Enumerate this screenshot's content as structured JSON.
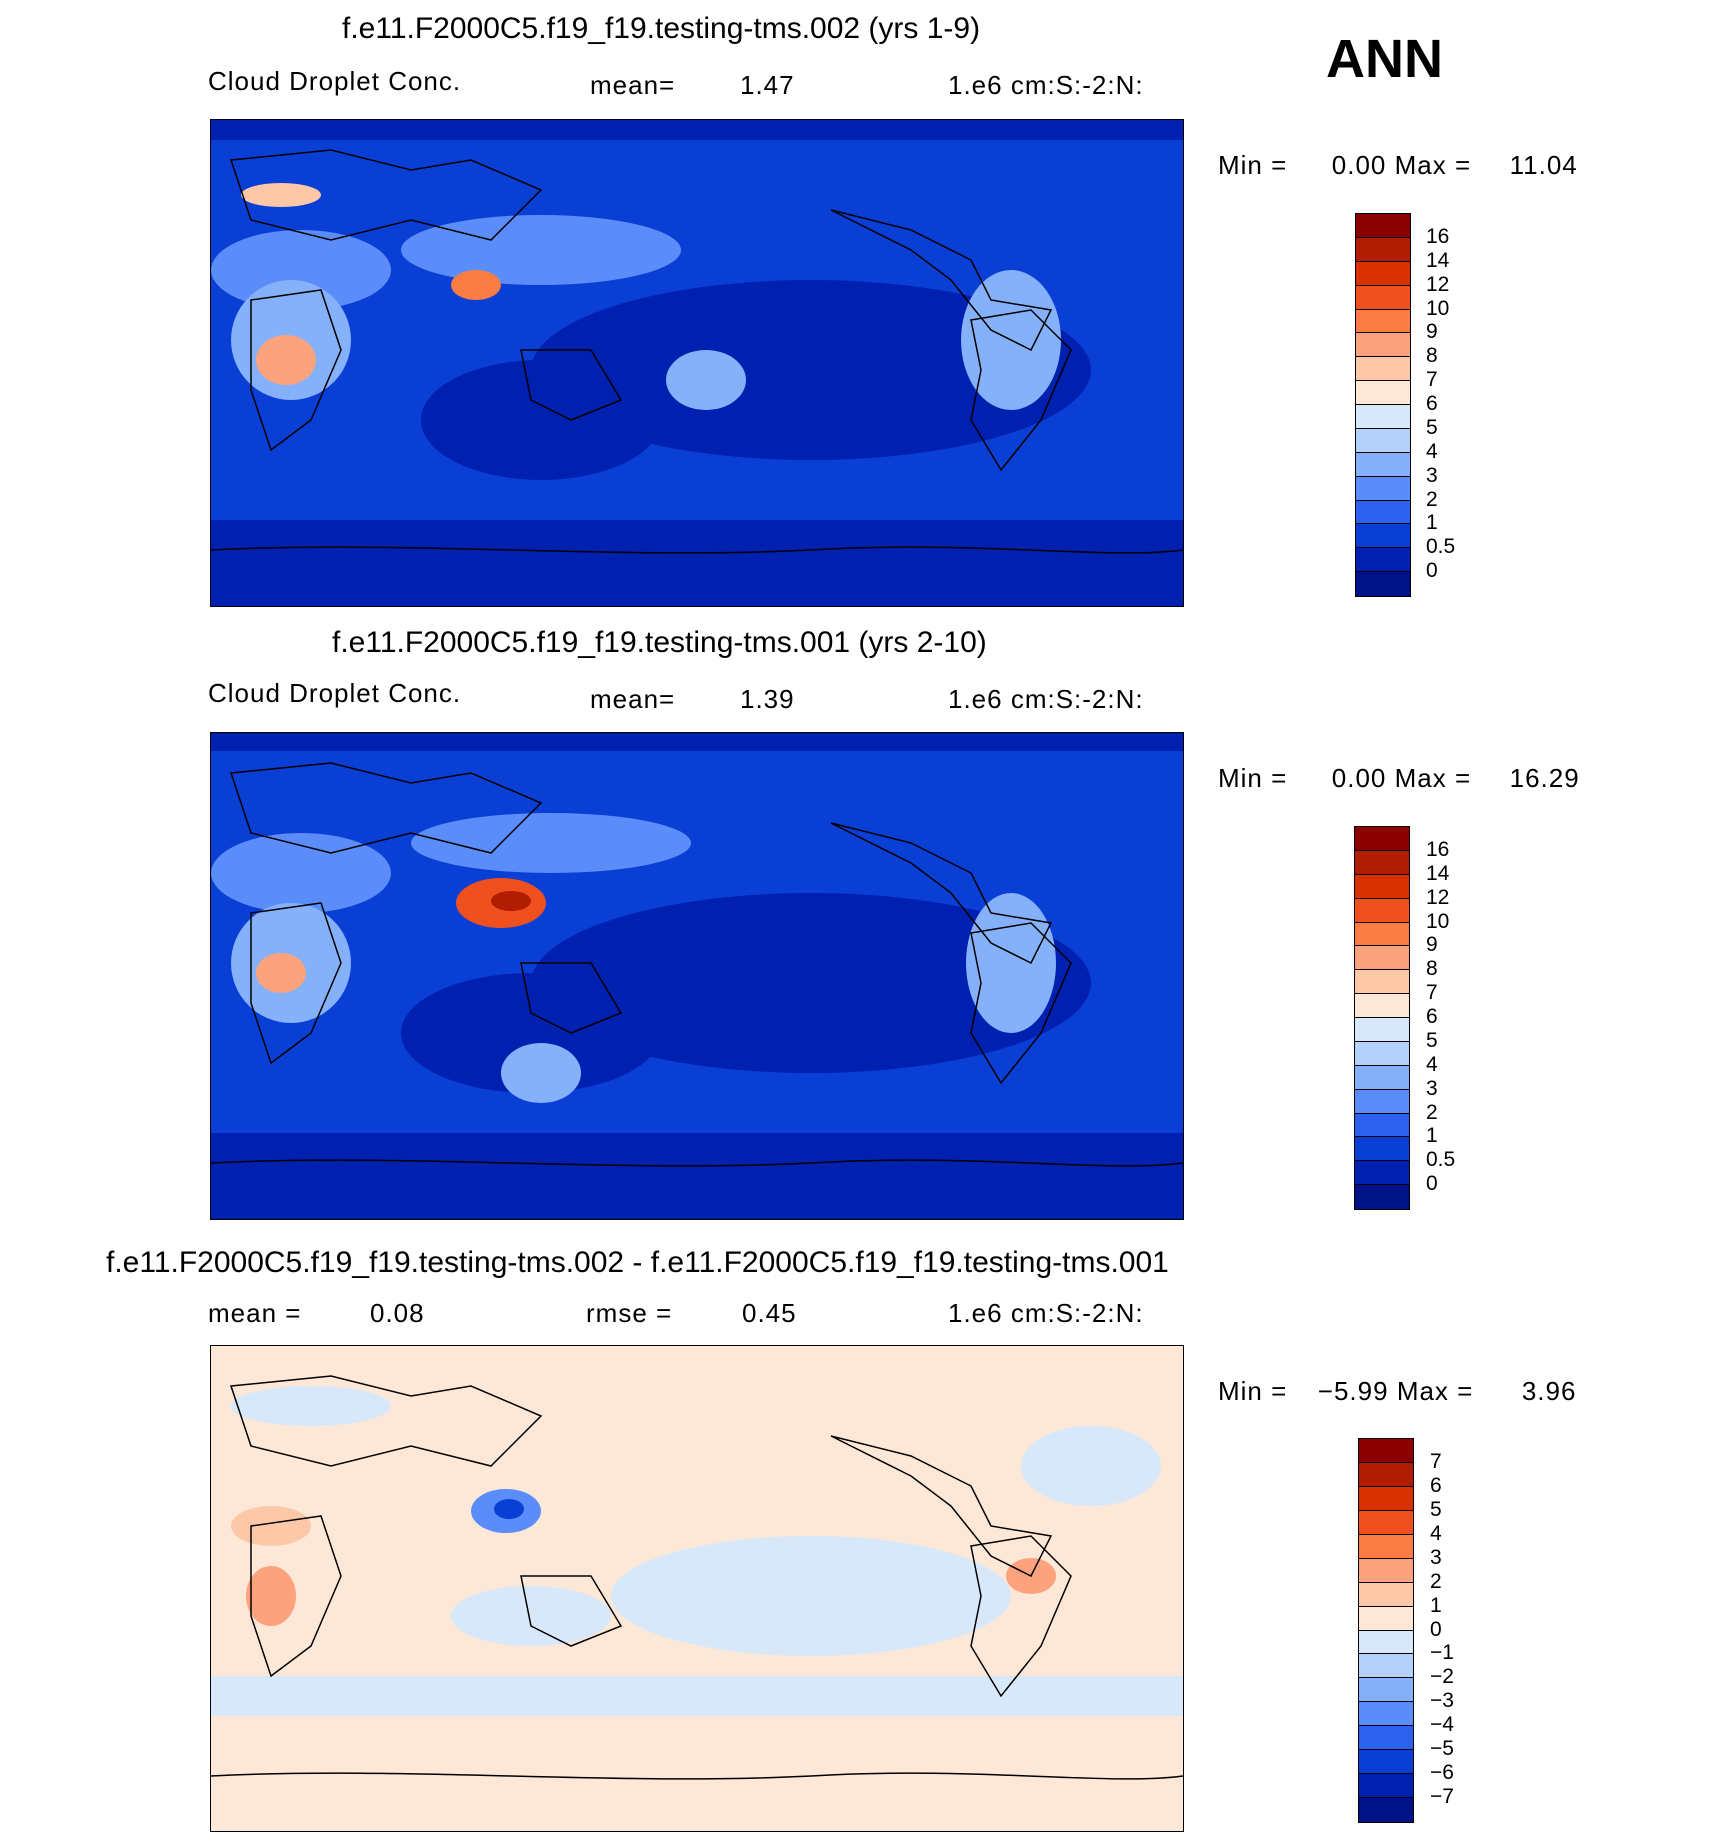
{
  "season": "ANN",
  "units": "1.e6 cm:S:-2:N:",
  "panels": [
    {
      "title": "f.e11.F2000C5.f19_f19.testing-tms.002 (yrs 1-9)",
      "variable": "Cloud Droplet Conc.",
      "stat_label": "mean=",
      "stat_value": "1.47",
      "min_label": "Min =",
      "min_value": "0.00",
      "max_label": "Max =",
      "max_value": "11.04",
      "levels": [
        "16",
        "14",
        "12",
        "10",
        "9",
        "8",
        "7",
        "6",
        "5",
        "4",
        "3",
        "2",
        "1",
        "0.5",
        "0"
      ]
    },
    {
      "title": "f.e11.F2000C5.f19_f19.testing-tms.001 (yrs 2-10)",
      "variable": "Cloud Droplet Conc.",
      "stat_label": "mean=",
      "stat_value": "1.39",
      "min_label": "Min =",
      "min_value": "0.00",
      "max_label": "Max =",
      "max_value": "16.29",
      "levels": [
        "16",
        "14",
        "12",
        "10",
        "9",
        "8",
        "7",
        "6",
        "5",
        "4",
        "3",
        "2",
        "1",
        "0.5",
        "0"
      ]
    },
    {
      "title": "f.e11.F2000C5.f19_f19.testing-tms.002 - f.e11.F2000C5.f19_f19.testing-tms.001",
      "stat_label": "mean =",
      "stat_value": "0.08",
      "stat2_label": "rmse =",
      "stat2_value": "0.45",
      "min_label": "Min =",
      "min_value": "−5.99",
      "max_label": "Max =",
      "max_value": "3.96",
      "levels": [
        "7",
        "6",
        "5",
        "4",
        "3",
        "2",
        "1",
        "0",
        "−1",
        "−2",
        "−3",
        "−4",
        "−5",
        "−6",
        "−7"
      ]
    }
  ],
  "colors": {
    "abs_scale": [
      "#8b0000",
      "#b01d00",
      "#d83200",
      "#f0501e",
      "#fb7c45",
      "#fca27d",
      "#fdc8a7",
      "#fde8d8",
      "#d6e8fa",
      "#b3d1fa",
      "#84b1fa",
      "#5a8dfa",
      "#2d62f0",
      "#0a3fd6",
      "#0020b0",
      "#001288"
    ],
    "diff_scale": [
      "#8b0000",
      "#b01d00",
      "#d83200",
      "#f0501e",
      "#fb7c45",
      "#fca27d",
      "#fdc8a7",
      "#fde8d8",
      "#d6e8fa",
      "#b3d1fa",
      "#84b1fa",
      "#5a8dfa",
      "#2d62f0",
      "#0a3fd6",
      "#0020b0",
      "#001288"
    ]
  }
}
